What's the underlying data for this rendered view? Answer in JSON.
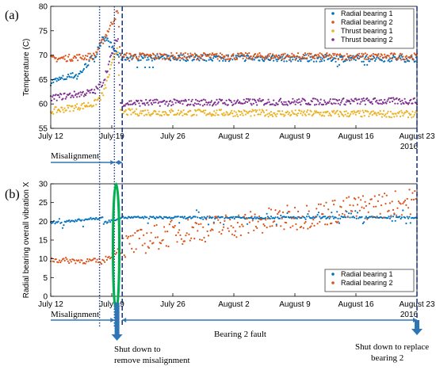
{
  "chart_data": [
    {
      "type": "scatter",
      "panel_label": "(a)",
      "ylabel": "Temperature (C)",
      "ylim": [
        55,
        80
      ],
      "y_ticks": [
        55,
        60,
        65,
        70,
        75,
        80
      ],
      "x_tick_labels": [
        "July 12",
        "July 19",
        "July 26",
        "August 2",
        "August 9",
        "August 16",
        "August 23"
      ],
      "x_year_label": "2016",
      "x_start_label": "July 12",
      "x_end_label": "August 23",
      "legend_position": "top-right",
      "series": [
        {
          "name": "Radial bearing 1",
          "color": "#0072BD",
          "segments": [
            [
              "July 12",
              64.5,
              65.5
            ],
            [
              "July 15",
              65.5,
              66
            ],
            [
              "July 17",
              69,
              70
            ],
            [
              "July 18",
              74,
              74
            ],
            [
              "July 20",
              69.5,
              69.5
            ],
            [
              "August 23",
              69.3,
              69.3
            ]
          ],
          "dips": [
            [
              "July 22",
              67.5
            ],
            [
              "August 12",
              67.7
            ],
            [
              "August 16",
              68
            ]
          ]
        },
        {
          "name": "Radial bearing 2",
          "color": "#D95319",
          "segments": [
            [
              "July 12",
              69.2,
              69.2
            ],
            [
              "July 17",
              69.8,
              69.8
            ],
            [
              "July 18",
              73,
              73
            ],
            [
              "July 19.7",
              79,
              79
            ],
            [
              "July 20",
              69.8,
              69.8
            ],
            [
              "August 23",
              69.7,
              69.7
            ]
          ]
        },
        {
          "name": "Thrust bearing 1",
          "color": "#EDB120",
          "segments": [
            [
              "July 12",
              58.5,
              58.5
            ],
            [
              "July 17",
              60,
              60
            ],
            [
              "July 18",
              62,
              62
            ],
            [
              "July 19.7",
              72,
              72
            ],
            [
              "July 20",
              58.3,
              58.3
            ],
            [
              "August 23",
              57.9,
              57.9
            ]
          ]
        },
        {
          "name": "Thrust bearing 2",
          "color": "#7E2F8E",
          "segments": [
            [
              "July 12",
              61.2,
              61.2
            ],
            [
              "July 17",
              62.5,
              62.5
            ],
            [
              "July 18",
              64.5,
              64.5
            ],
            [
              "July 19.7",
              74,
              74
            ],
            [
              "July 20",
              60.2,
              60.2
            ],
            [
              "August 23",
              60.6,
              60.6
            ]
          ]
        }
      ]
    },
    {
      "type": "scatter",
      "panel_label": "(b)",
      "ylabel": "Radial bearing overall vibration X",
      "ylim": [
        0,
        30
      ],
      "y_ticks": [
        0,
        5,
        10,
        15,
        20,
        25,
        30
      ],
      "x_tick_labels": [
        "July 12",
        "July 19",
        "July 26",
        "August 2",
        "August 9",
        "August 16",
        "August 23"
      ],
      "x_year_label": "2016",
      "x_start_label": "July 12",
      "x_end_label": "August 23",
      "legend_position": "bottom-right",
      "series": [
        {
          "name": "Radial bearing 1",
          "color": "#0072BD",
          "segments": [
            [
              "July 12",
              19.5,
              19.5
            ],
            [
              "July 18",
              19.5,
              21
            ],
            [
              "July 20",
              21,
              21
            ],
            [
              "August 23",
              21,
              21
            ]
          ]
        },
        {
          "name": "Radial bearing 2",
          "color": "#D95319",
          "segments": [
            [
              "July 12",
              9.7,
              9.7
            ],
            [
              "July 18",
              9.3,
              9.3
            ],
            [
              "July 20",
              13,
              13
            ],
            [
              "July 26",
              17,
              17
            ],
            [
              "August 2",
              19,
              19
            ],
            [
              "August 9",
              21,
              21
            ],
            [
              "August 16",
              23.5,
              23.5
            ],
            [
              "August 23",
              25.5,
              25.5
            ]
          ]
        }
      ]
    }
  ],
  "annotations": {
    "misalignment_top": "Misalignment",
    "misalignment_bottom": "Misalignment",
    "bearing_fault": "Bearing  2 fault",
    "shutdown_1_line1": "Shut down to",
    "shutdown_1_line2": "remove misalignment",
    "shutdown_2_line1": "Shut down to replace",
    "shutdown_2_line2": "bearing 2"
  },
  "colors": {
    "radial1": "#0072BD",
    "radial2": "#D95319",
    "thrust1": "#EDB120",
    "thrust2": "#7E2F8E",
    "guide": "#1f3b8c",
    "arrow": "#2e75b6",
    "ellipse": "#00b050"
  }
}
